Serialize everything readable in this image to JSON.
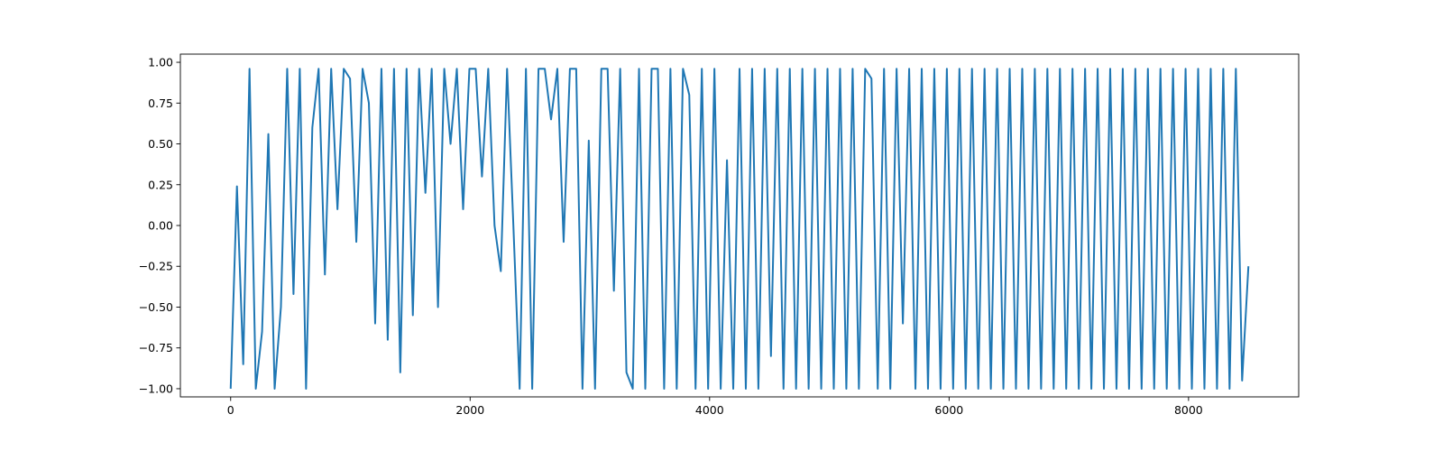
{
  "chart_data": {
    "type": "line",
    "title": "",
    "xlabel": "",
    "ylabel": "",
    "xlim": [
      -420,
      8920
    ],
    "ylim": [
      -1.05,
      1.05
    ],
    "x_ticks": [
      0,
      2000,
      4000,
      6000,
      8000
    ],
    "x_tick_labels": [
      "0",
      "2000",
      "4000",
      "6000",
      "8000"
    ],
    "y_ticks": [
      1.0,
      0.75,
      0.5,
      0.25,
      0.0,
      -0.25,
      -0.5,
      -0.75,
      -1.0
    ],
    "y_tick_labels": [
      "1.00",
      "0.75",
      "0.50",
      "0.25",
      "0.00",
      "−0.25",
      "−0.50",
      "−0.75",
      "−1.00"
    ],
    "grid": false,
    "legend": "none",
    "series": [
      {
        "color": "#1f77b4",
        "x_start": 0,
        "x_end": 8500,
        "n_points": 8500,
        "y_min": -1.0,
        "y_max": 0.96,
        "values": [
          -1.0,
          0.24,
          -0.85,
          0.96,
          -1.0,
          -0.65,
          0.56,
          -1.0,
          -0.5,
          0.96,
          -0.42,
          0.96,
          -1.0,
          0.6,
          0.96,
          -0.3,
          0.96,
          0.1,
          0.96,
          0.9,
          -0.1,
          0.96,
          0.75,
          -0.6,
          0.96,
          -0.7,
          0.96,
          -0.9,
          0.96,
          -0.55,
          0.96,
          0.2,
          0.96,
          -0.5,
          0.96,
          0.5,
          0.96,
          0.1,
          0.96,
          0.96,
          0.3,
          0.96,
          0.0,
          -0.28,
          0.96,
          0.0,
          -1.0,
          0.96,
          -1.0,
          0.96,
          0.96,
          0.65,
          0.96,
          -0.1,
          0.96,
          0.96,
          -1.0,
          0.52,
          -1.0,
          0.96,
          0.96,
          -0.4,
          0.96,
          -0.9,
          -1.0,
          0.96,
          -1.0,
          0.96,
          0.96,
          -1.0,
          0.96,
          -1.0,
          0.96,
          0.8,
          -1.0,
          0.96,
          -1.0,
          0.96,
          -1.0,
          0.4,
          -1.0,
          0.96,
          -1.0,
          0.96,
          -1.0,
          0.96,
          -0.8,
          0.96,
          -1.0,
          0.96,
          -1.0,
          0.96,
          -1.0,
          0.96,
          -1.0,
          0.96,
          -1.0,
          0.96,
          -1.0,
          0.96,
          -1.0,
          0.96,
          0.9,
          -1.0,
          0.96,
          -1.0,
          0.96,
          -0.6,
          0.96,
          -1.0,
          0.96,
          -1.0,
          0.96,
          -1.0,
          0.96,
          -1.0,
          0.96,
          -1.0,
          0.96,
          -1.0,
          0.96,
          -1.0,
          0.96,
          -1.0,
          0.96,
          -1.0,
          0.96,
          -1.0,
          0.96,
          -1.0,
          0.96,
          -1.0,
          0.96,
          -1.0,
          0.96,
          -1.0,
          0.96,
          -1.0,
          0.96,
          -1.0,
          0.96,
          -1.0,
          0.96,
          -1.0,
          0.96,
          -1.0,
          0.96,
          -1.0,
          0.96,
          -1.0,
          0.96,
          -1.0,
          0.96,
          -1.0,
          0.96,
          -1.0,
          0.96,
          -1.0,
          0.96,
          -1.0,
          0.96,
          -0.95,
          -0.25
        ]
      }
    ]
  }
}
